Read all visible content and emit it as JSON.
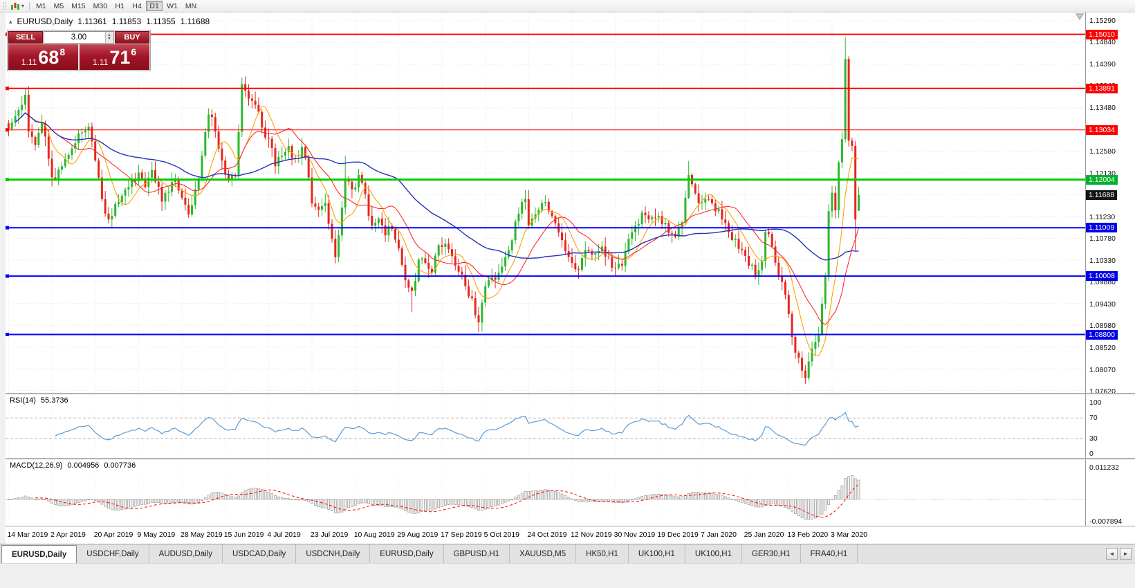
{
  "colors": {
    "up": "#2DB82D",
    "down": "#E5271C",
    "grid": "#e6e6e6",
    "rsi_line": "#5B9BD5",
    "macd_signal": "#FF0000",
    "macd_bar_fill": "#f0f0f0",
    "macd_bar_stroke": "#979797"
  },
  "toolbar": {
    "timeframes": [
      "M1",
      "M5",
      "M15",
      "M30",
      "H1",
      "H4",
      "D1",
      "W1",
      "MN"
    ],
    "active": "D1"
  },
  "chart_header": {
    "collapse_icon": "▴",
    "symbol_period": "EURUSD,Daily",
    "open": "1.11361",
    "high": "1.11853",
    "low": "1.11355",
    "close": "1.11688"
  },
  "trade_panel": {
    "sell_label": "SELL",
    "buy_label": "BUY",
    "volume": "3.00",
    "sell_small": "1.11",
    "sell_big": "68",
    "sell_sup": "8",
    "buy_small": "1.11",
    "buy_big": "71",
    "buy_sup": "6"
  },
  "price_scale": {
    "ticks": [
      "1.15290",
      "1.14840",
      "1.14390",
      "1.13940",
      "1.13480",
      "1.12580",
      "1.12130",
      "1.11230",
      "1.10780",
      "1.10330",
      "1.09880",
      "1.09430",
      "1.08980",
      "1.08520",
      "1.08070",
      "1.07620"
    ],
    "badges": [
      {
        "label": "1.15010",
        "price": 1.1501,
        "bg": "#FF0000"
      },
      {
        "label": "1.13891",
        "price": 1.13891,
        "bg": "#FF0000"
      },
      {
        "label": "1.13034",
        "price": 1.13034,
        "bg": "#FF0000"
      },
      {
        "label": "1.12004",
        "price": 1.12004,
        "bg": "#00B32C"
      },
      {
        "label": "1.11688",
        "price": 1.11688,
        "bg": "#141414"
      },
      {
        "label": "1.11009",
        "price": 1.11009,
        "bg": "#0000E6"
      },
      {
        "label": "1.10008",
        "price": 1.10008,
        "bg": "#0000E6"
      },
      {
        "label": "1.08800",
        "price": 1.088,
        "bg": "#0000E6"
      }
    ]
  },
  "chart_data": {
    "type": "candlestick",
    "symbol": "EURUSD",
    "timeframe": "Daily",
    "y_min": 1.0762,
    "y_max": 1.1529,
    "grid_step": 0.0045,
    "candle_count": 256,
    "labels_every": 13,
    "x_labels": [
      "14 Mar 2019",
      "2 Apr 2019",
      "20 Apr 2019",
      "9 May 2019",
      "28 May 2019",
      "15 Jun 2019",
      "4 Jul 2019",
      "23 Jul 2019",
      "10 Aug 2019",
      "29 Aug 2019",
      "17 Sep 2019",
      "5 Oct 2019",
      "24 Oct 2019",
      "12 Nov 2019",
      "30 Nov 2019",
      "19 Dec 2019",
      "7 Jan 2020",
      "25 Jan 2020",
      "13 Feb 2020",
      "3 Mar 2020"
    ],
    "close_anchors": [
      [
        0,
        1.1305
      ],
      [
        2,
        1.1332
      ],
      [
        4,
        1.1355
      ],
      [
        5,
        1.1376
      ],
      [
        6,
        1.13
      ],
      [
        8,
        1.1272
      ],
      [
        10,
        1.1318
      ],
      [
        13,
        1.1205
      ],
      [
        16,
        1.1228
      ],
      [
        19,
        1.1265
      ],
      [
        22,
        1.1298
      ],
      [
        24,
        1.131
      ],
      [
        26,
        1.124
      ],
      [
        28,
        1.116
      ],
      [
        30,
        1.1118
      ],
      [
        32,
        1.115
      ],
      [
        35,
        1.118
      ],
      [
        39,
        1.1215
      ],
      [
        41,
        1.1185
      ],
      [
        43,
        1.122
      ],
      [
        46,
        1.1155
      ],
      [
        48,
        1.1175
      ],
      [
        50,
        1.1202
      ],
      [
        52,
        1.1163
      ],
      [
        54,
        1.1128
      ],
      [
        56,
        1.118
      ],
      [
        58,
        1.125
      ],
      [
        60,
        1.1335
      ],
      [
        62,
        1.13
      ],
      [
        64,
        1.124
      ],
      [
        66,
        1.12
      ],
      [
        68,
        1.1208
      ],
      [
        70,
        1.1398
      ],
      [
        72,
        1.1368
      ],
      [
        74,
        1.1355
      ],
      [
        76,
        1.1308
      ],
      [
        78,
        1.1285
      ],
      [
        80,
        1.1228
      ],
      [
        82,
        1.125
      ],
      [
        84,
        1.127
      ],
      [
        86,
        1.1245
      ],
      [
        88,
        1.1268
      ],
      [
        90,
        1.1205
      ],
      [
        91,
        1.1151
      ],
      [
        93,
        1.1138
      ],
      [
        95,
        1.1152
      ],
      [
        97,
        1.1078
      ],
      [
        98,
        1.104
      ],
      [
        99,
        1.1085
      ],
      [
        101,
        1.12
      ],
      [
        103,
        1.118
      ],
      [
        105,
        1.121
      ],
      [
        107,
        1.117
      ],
      [
        109,
        1.1105
      ],
      [
        111,
        1.112
      ],
      [
        113,
        1.1085
      ],
      [
        115,
        1.1098
      ],
      [
        117,
        1.1058
      ],
      [
        119,
        1.0992
      ],
      [
        121,
        1.097
      ],
      [
        123,
        1.1035
      ],
      [
        125,
        1.1028
      ],
      [
        127,
        1.1008
      ],
      [
        129,
        1.1065
      ],
      [
        131,
        1.1068
      ],
      [
        133,
        1.1042
      ],
      [
        135,
        1.101
      ],
      [
        137,
        1.098
      ],
      [
        139,
        1.0955
      ],
      [
        141,
        1.0905
      ],
      [
        143,
        1.098
      ],
      [
        145,
        1.0998
      ],
      [
        147,
        1.1008
      ],
      [
        149,
        1.104
      ],
      [
        151,
        1.1075
      ],
      [
        153,
        1.113
      ],
      [
        155,
        1.116
      ],
      [
        156,
        1.1105
      ],
      [
        158,
        1.1128
      ],
      [
        160,
        1.1152
      ],
      [
        162,
        1.1135
      ],
      [
        164,
        1.111
      ],
      [
        166,
        1.1075
      ],
      [
        168,
        1.104
      ],
      [
        170,
        1.1015
      ],
      [
        172,
        1.1038
      ],
      [
        174,
        1.1052
      ],
      [
        176,
        1.1048
      ],
      [
        178,
        1.1062
      ],
      [
        180,
        1.104
      ],
      [
        182,
        1.1018
      ],
      [
        184,
        1.1022
      ],
      [
        186,
        1.1078
      ],
      [
        188,
        1.1105
      ],
      [
        190,
        1.1132
      ],
      [
        192,
        1.1118
      ],
      [
        194,
        1.1122
      ],
      [
        196,
        1.1108
      ],
      [
        198,
        1.109
      ],
      [
        200,
        1.1082
      ],
      [
        202,
        1.1112
      ],
      [
        204,
        1.121
      ],
      [
        206,
        1.1172
      ],
      [
        208,
        1.1153
      ],
      [
        210,
        1.116
      ],
      [
        212,
        1.1135
      ],
      [
        214,
        1.1118
      ],
      [
        216,
        1.1092
      ],
      [
        218,
        1.1078
      ],
      [
        220,
        1.1055
      ],
      [
        222,
        1.1022
      ],
      [
        224,
        1.1002
      ],
      [
        226,
        1.1032
      ],
      [
        227,
        1.1092
      ],
      [
        229,
        1.1062
      ],
      [
        231,
        1.1002
      ],
      [
        233,
        1.0962
      ],
      [
        235,
        1.0875
      ],
      [
        237,
        1.0832
      ],
      [
        239,
        1.079
      ],
      [
        241,
        1.085
      ],
      [
        243,
        1.088
      ],
      [
        245,
        1.1
      ],
      [
        246,
        1.1135
      ],
      [
        247,
        1.1173
      ],
      [
        248,
        1.1137
      ],
      [
        249,
        1.1236
      ],
      [
        250,
        1.1284
      ],
      [
        251,
        1.145
      ],
      [
        252,
        1.1281
      ],
      [
        253,
        1.127
      ],
      [
        254,
        1.1118
      ],
      [
        255,
        1.11688
      ]
    ],
    "wick_overrides": {
      "5": {
        "h": 1.139
      },
      "30": {
        "l": 1.111
      },
      "60": {
        "h": 1.1348
      },
      "70": {
        "h": 1.1412
      },
      "98": {
        "l": 1.1027
      },
      "101": {
        "h": 1.125
      },
      "121": {
        "l": 1.0926
      },
      "141": {
        "l": 1.0885
      },
      "155": {
        "h": 1.1179
      },
      "204": {
        "h": 1.1239
      },
      "239": {
        "l": 1.0778
      },
      "251": {
        "h": 1.1495
      },
      "254": {
        "l": 1.1054
      }
    },
    "last_candle": {
      "o": 1.11361,
      "h": 1.11853,
      "l": 1.11355,
      "c": 1.11688
    },
    "levels": [
      {
        "price": 1.1501,
        "color": "#FF0000",
        "width": 2
      },
      {
        "price": 1.13891,
        "color": "#FF0000",
        "width": 2
      },
      {
        "price": 1.13034,
        "color": "#FF0000",
        "width": 1
      },
      {
        "price": 1.12004,
        "color": "#00CC00",
        "width": 3
      },
      {
        "price": 1.11009,
        "color": "#0000FF",
        "width": 2
      },
      {
        "price": 1.10008,
        "color": "#0000FF",
        "width": 2
      },
      {
        "price": 1.088,
        "color": "#0000FF",
        "width": 2
      }
    ],
    "moving_averages": [
      {
        "period": 8,
        "color": "#FFA000",
        "width": 1.1
      },
      {
        "period": 16,
        "color": "#FF2A2A",
        "width": 1.1
      },
      {
        "period": 48,
        "color": "#2233BB",
        "width": 1.4
      }
    ]
  },
  "rsi": {
    "label": "RSI(14)",
    "value": "55.3736",
    "scale": [
      100,
      70,
      30,
      0
    ],
    "upper": 70,
    "lower": 30
  },
  "macd": {
    "label": "MACD(12,26,9)",
    "value_main": "0.004956",
    "value_signal": "0.007736",
    "scale_top": "0.011232",
    "scale_bottom": "-0.007894",
    "y_max": 0.011232,
    "y_min": -0.007894
  },
  "tabs": {
    "items": [
      "EURUSD,Daily",
      "USDCHF,Daily",
      "AUDUSD,Daily",
      "USDCAD,Daily",
      "USDCNH,Daily",
      "EURUSD,Daily",
      "GBPUSD,H1",
      "XAUUSD,M5",
      "HK50,H1",
      "UK100,H1",
      "UK100,H1",
      "GER30,H1",
      "FRA40,H1"
    ],
    "active_index": 0,
    "scroll_left_icon": "◄",
    "scroll_right_icon": "►"
  }
}
